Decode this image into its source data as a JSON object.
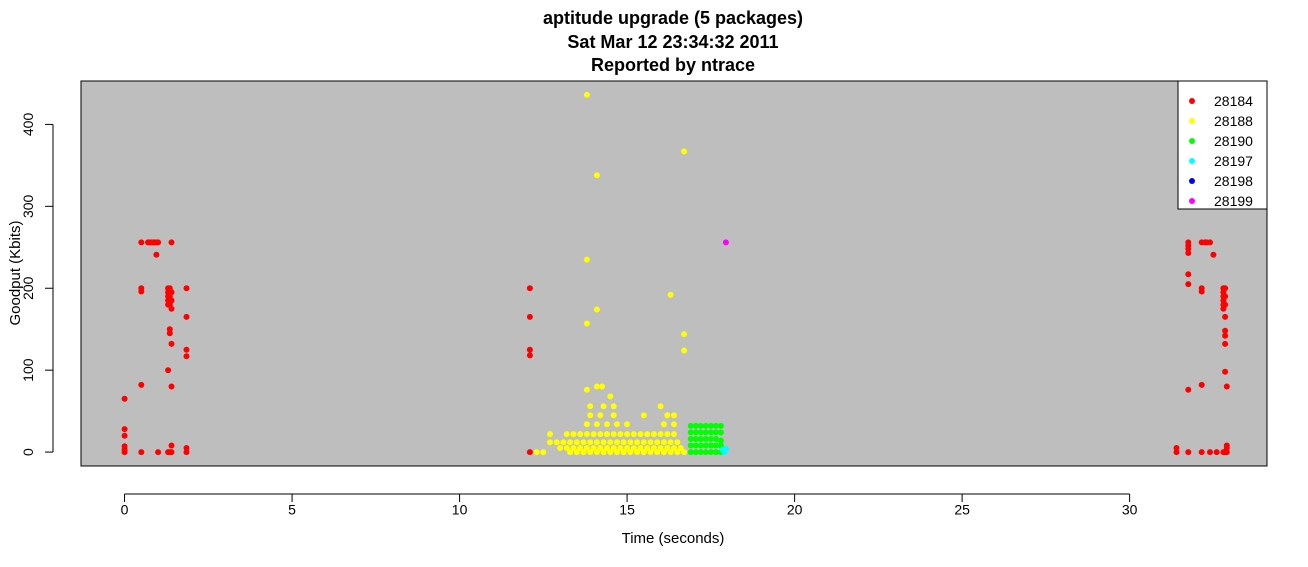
{
  "chart_data": {
    "type": "scatter",
    "title": [
      "aptitude upgrade (5 packages)",
      "Sat Mar 12 23:34:32 2011",
      "Reported by ntrace"
    ],
    "xlabel": "Time (seconds)",
    "ylabel": "Goodput (Kbits)",
    "xlim": [
      -1.3,
      34.1
    ],
    "ylim": [
      -17,
      453
    ],
    "x_ticks": [
      0,
      5,
      10,
      15,
      20,
      25,
      30
    ],
    "y_ticks": [
      0,
      100,
      200,
      300,
      400
    ],
    "background_color": "#bebebe",
    "grid": false,
    "legend_position": "top-right",
    "series": [
      {
        "name": "28184",
        "color": "#ff0000",
        "points": [
          [
            0.0,
            0
          ],
          [
            0.0,
            3
          ],
          [
            0.0,
            7
          ],
          [
            0.0,
            20
          ],
          [
            0.0,
            28
          ],
          [
            0.0,
            65
          ],
          [
            0.5,
            0
          ],
          [
            0.5,
            82
          ],
          [
            0.5,
            196
          ],
          [
            0.5,
            200
          ],
          [
            0.5,
            256
          ],
          [
            0.7,
            256
          ],
          [
            0.75,
            256
          ],
          [
            0.8,
            256
          ],
          [
            0.85,
            256
          ],
          [
            0.9,
            256
          ],
          [
            0.95,
            256
          ],
          [
            1.0,
            256
          ],
          [
            1.0,
            0
          ],
          [
            0.95,
            241
          ],
          [
            1.3,
            0
          ],
          [
            1.3,
            100
          ],
          [
            1.3,
            180
          ],
          [
            1.3,
            185
          ],
          [
            1.3,
            190
          ],
          [
            1.3,
            195
          ],
          [
            1.3,
            200
          ],
          [
            1.35,
            145
          ],
          [
            1.35,
            150
          ],
          [
            1.35,
            180
          ],
          [
            1.35,
            190
          ],
          [
            1.35,
            200
          ],
          [
            1.35,
            0
          ],
          [
            1.4,
            256
          ],
          [
            1.4,
            80
          ],
          [
            1.4,
            132
          ],
          [
            1.4,
            175
          ],
          [
            1.4,
            185
          ],
          [
            1.4,
            195
          ],
          [
            1.4,
            0
          ],
          [
            1.4,
            8
          ],
          [
            1.85,
            0
          ],
          [
            1.85,
            5
          ],
          [
            1.85,
            117
          ],
          [
            1.85,
            125
          ],
          [
            1.85,
            165
          ],
          [
            1.85,
            200
          ],
          [
            12.1,
            0
          ],
          [
            12.1,
            118
          ],
          [
            12.1,
            125
          ],
          [
            12.1,
            165
          ],
          [
            12.1,
            200
          ],
          [
            31.4,
            0
          ],
          [
            31.4,
            5
          ],
          [
            31.75,
            0
          ],
          [
            31.75,
            76
          ],
          [
            31.75,
            205
          ],
          [
            31.75,
            217
          ],
          [
            31.75,
            243
          ],
          [
            31.75,
            248
          ],
          [
            31.75,
            252
          ],
          [
            31.75,
            256
          ],
          [
            32.15,
            0
          ],
          [
            32.15,
            82
          ],
          [
            32.15,
            196
          ],
          [
            32.15,
            200
          ],
          [
            32.15,
            256
          ],
          [
            32.25,
            256
          ],
          [
            32.3,
            256
          ],
          [
            32.4,
            256
          ],
          [
            32.4,
            0
          ],
          [
            32.5,
            241
          ],
          [
            32.6,
            0
          ],
          [
            32.8,
            0
          ],
          [
            32.8,
            175
          ],
          [
            32.8,
            180
          ],
          [
            32.8,
            185
          ],
          [
            32.8,
            190
          ],
          [
            32.8,
            195
          ],
          [
            32.8,
            200
          ],
          [
            32.85,
            0
          ],
          [
            32.85,
            98
          ],
          [
            32.85,
            132
          ],
          [
            32.85,
            142
          ],
          [
            32.85,
            148
          ],
          [
            32.85,
            165
          ],
          [
            32.85,
            180
          ],
          [
            32.85,
            190
          ],
          [
            32.85,
            200
          ],
          [
            32.9,
            0
          ],
          [
            32.9,
            5
          ],
          [
            32.9,
            8
          ],
          [
            32.9,
            80
          ]
        ]
      },
      {
        "name": "28188",
        "color": "#ffff00",
        "points": [
          [
            12.3,
            0
          ],
          [
            12.5,
            0
          ],
          [
            12.7,
            12
          ],
          [
            12.7,
            22
          ],
          [
            13.8,
            436
          ],
          [
            14.1,
            338
          ],
          [
            16.7,
            367
          ],
          [
            13.8,
            235
          ],
          [
            16.3,
            192
          ],
          [
            14.1,
            174
          ],
          [
            13.8,
            157
          ],
          [
            16.7,
            144
          ],
          [
            16.7,
            124
          ],
          [
            13.8,
            76
          ],
          [
            14.1,
            80
          ],
          [
            14.25,
            80
          ],
          [
            14.5,
            68
          ],
          [
            13.9,
            56
          ],
          [
            14.3,
            56
          ],
          [
            14.6,
            56
          ],
          [
            16.0,
            56
          ],
          [
            15.5,
            45
          ],
          [
            16.2,
            45
          ],
          [
            16.4,
            45
          ],
          [
            13.2,
            22
          ],
          [
            13.4,
            22
          ],
          [
            13.6,
            22
          ],
          [
            13.8,
            22
          ],
          [
            14.0,
            22
          ],
          [
            14.2,
            22
          ],
          [
            14.4,
            22
          ],
          [
            14.6,
            22
          ],
          [
            14.8,
            22
          ],
          [
            15.0,
            22
          ],
          [
            15.2,
            22
          ],
          [
            15.4,
            22
          ],
          [
            15.6,
            22
          ],
          [
            15.8,
            22
          ],
          [
            16.0,
            22
          ],
          [
            16.2,
            22
          ],
          [
            16.4,
            22
          ],
          [
            13.8,
            34
          ],
          [
            14.1,
            34
          ],
          [
            14.4,
            34
          ],
          [
            14.7,
            34
          ],
          [
            15.0,
            34
          ],
          [
            16.1,
            34
          ],
          [
            16.4,
            34
          ],
          [
            13.9,
            45
          ],
          [
            14.2,
            45
          ],
          [
            14.6,
            45
          ],
          [
            12.9,
            12
          ],
          [
            13.1,
            12
          ],
          [
            13.3,
            12
          ],
          [
            13.5,
            12
          ],
          [
            13.7,
            12
          ],
          [
            13.9,
            12
          ],
          [
            14.1,
            12
          ],
          [
            14.3,
            12
          ],
          [
            14.5,
            12
          ],
          [
            14.7,
            12
          ],
          [
            14.9,
            12
          ],
          [
            15.1,
            12
          ],
          [
            15.3,
            12
          ],
          [
            15.5,
            12
          ],
          [
            15.7,
            12
          ],
          [
            15.9,
            12
          ],
          [
            16.1,
            12
          ],
          [
            16.3,
            12
          ],
          [
            16.5,
            12
          ],
          [
            13.0,
            5
          ],
          [
            13.2,
            5
          ],
          [
            13.4,
            5
          ],
          [
            13.6,
            5
          ],
          [
            13.8,
            5
          ],
          [
            14.0,
            5
          ],
          [
            14.2,
            5
          ],
          [
            14.4,
            5
          ],
          [
            14.6,
            5
          ],
          [
            14.8,
            5
          ],
          [
            15.0,
            5
          ],
          [
            15.2,
            5
          ],
          [
            15.4,
            5
          ],
          [
            15.6,
            5
          ],
          [
            15.8,
            5
          ],
          [
            16.0,
            5
          ],
          [
            16.2,
            5
          ],
          [
            16.4,
            5
          ],
          [
            16.6,
            5
          ],
          [
            13.3,
            0
          ],
          [
            13.5,
            0
          ],
          [
            13.7,
            0
          ],
          [
            13.9,
            0
          ],
          [
            14.1,
            0
          ],
          [
            14.3,
            0
          ],
          [
            14.5,
            0
          ],
          [
            14.7,
            0
          ],
          [
            14.9,
            0
          ],
          [
            15.1,
            0
          ],
          [
            15.3,
            0
          ],
          [
            15.5,
            0
          ],
          [
            15.7,
            0
          ],
          [
            15.9,
            0
          ],
          [
            16.1,
            0
          ],
          [
            16.3,
            0
          ],
          [
            16.5,
            0
          ],
          [
            16.7,
            0
          ]
        ]
      },
      {
        "name": "28190",
        "color": "#00ff00",
        "points": [
          [
            16.9,
            0
          ],
          [
            16.9,
            8
          ],
          [
            16.9,
            16
          ],
          [
            16.9,
            24
          ],
          [
            16.9,
            32
          ],
          [
            17.05,
            0
          ],
          [
            17.05,
            8
          ],
          [
            17.05,
            16
          ],
          [
            17.05,
            24
          ],
          [
            17.05,
            32
          ],
          [
            17.2,
            0
          ],
          [
            17.2,
            8
          ],
          [
            17.2,
            16
          ],
          [
            17.2,
            24
          ],
          [
            17.2,
            32
          ],
          [
            17.35,
            0
          ],
          [
            17.35,
            8
          ],
          [
            17.35,
            16
          ],
          [
            17.35,
            24
          ],
          [
            17.35,
            32
          ],
          [
            17.5,
            0
          ],
          [
            17.5,
            8
          ],
          [
            17.5,
            16
          ],
          [
            17.5,
            24
          ],
          [
            17.5,
            32
          ],
          [
            17.65,
            0
          ],
          [
            17.65,
            8
          ],
          [
            17.65,
            16
          ],
          [
            17.65,
            24
          ],
          [
            17.65,
            32
          ],
          [
            17.8,
            0
          ],
          [
            17.8,
            8
          ],
          [
            17.8,
            24
          ],
          [
            17.8,
            32
          ],
          [
            17.8,
            14
          ]
        ]
      },
      {
        "name": "28197",
        "color": "#00ffff",
        "points": [
          [
            17.9,
            0
          ],
          [
            17.95,
            4
          ],
          [
            17.85,
            3
          ]
        ]
      },
      {
        "name": "28198",
        "color": "#0000ff",
        "points": []
      },
      {
        "name": "28199",
        "color": "#ff00ff",
        "points": [
          [
            17.95,
            256
          ]
        ]
      }
    ]
  }
}
